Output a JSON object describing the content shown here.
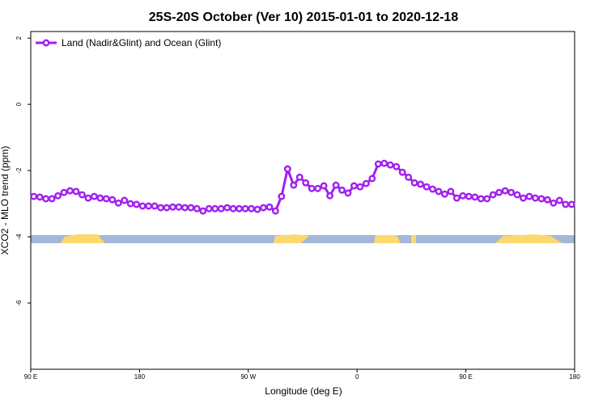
{
  "chart_data": {
    "type": "line",
    "title": "25S-20S October (Ver 10)   2015-01-01 to 2020-12-18",
    "x_label": "Longitude (deg E)",
    "y_label": "XCO2 - MLO trend (ppm)",
    "xlim": [
      90,
      540
    ],
    "ylim": [
      -8,
      2.2
    ],
    "xticks": [
      {
        "value": 90,
        "label": "90 E"
      },
      {
        "value": 180,
        "label": "180"
      },
      {
        "value": 270,
        "label": "90 W"
      },
      {
        "value": 360,
        "label": "0"
      },
      {
        "value": 450,
        "label": "90 E"
      },
      {
        "value": 540,
        "label": "180"
      }
    ],
    "yticks": [
      -6,
      -4,
      -2,
      0,
      2
    ],
    "legend": "top-left",
    "x": [
      92.5,
      97.5,
      102.5,
      107.5,
      112.5,
      117.5,
      122.5,
      127.5,
      132.5,
      137.5,
      142.5,
      147.5,
      152.5,
      157.5,
      162.5,
      167.5,
      172.5,
      177.5,
      182.5,
      187.5,
      192.5,
      197.5,
      202.5,
      207.5,
      212.5,
      217.5,
      222.5,
      227.5,
      232.5,
      237.5,
      242.5,
      247.5,
      252.5,
      257.5,
      262.5,
      267.5,
      272.5,
      277.5,
      282.5,
      287.5,
      292.5,
      297.5,
      302.5,
      307.5,
      312.5,
      317.5,
      322.5,
      327.5,
      332.5,
      337.5,
      342.5,
      347.5,
      352.5,
      357.5,
      362.5,
      367.5,
      372.5,
      377.5,
      382.5,
      387.5,
      392.5,
      397.5,
      402.5,
      407.5,
      412.5,
      417.5,
      422.5,
      427.5,
      432.5,
      437.5,
      442.5,
      447.5,
      452.5,
      457.5,
      462.5,
      467.5,
      472.5,
      477.5,
      482.5,
      487.5,
      492.5,
      497.5,
      502.5,
      507.5,
      512.5,
      517.5,
      522.5,
      527.5,
      532.5,
      537.5
    ],
    "series": [
      {
        "name": "Land (Nadir&Glint) and Ocean (Glint)",
        "color": "#a020f0",
        "values": [
          -2.78,
          -2.8,
          -2.85,
          -2.85,
          -2.76,
          -2.66,
          -2.61,
          -2.63,
          -2.73,
          -2.83,
          -2.78,
          -2.83,
          -2.85,
          -2.88,
          -2.98,
          -2.9,
          -3.0,
          -3.02,
          -3.07,
          -3.07,
          -3.07,
          -3.12,
          -3.12,
          -3.1,
          -3.1,
          -3.12,
          -3.12,
          -3.15,
          -3.22,
          -3.15,
          -3.15,
          -3.15,
          -3.12,
          -3.15,
          -3.15,
          -3.15,
          -3.15,
          -3.17,
          -3.12,
          -3.1,
          -3.22,
          -2.78,
          -1.95,
          -2.44,
          -2.2,
          -2.37,
          -2.54,
          -2.54,
          -2.46,
          -2.76,
          -2.44,
          -2.59,
          -2.68,
          -2.46,
          -2.49,
          -2.39,
          -2.24,
          -1.8,
          -1.78,
          -1.83,
          -1.88,
          -2.05,
          -2.2,
          -2.37,
          -2.41,
          -2.49,
          -2.56,
          -2.63,
          -2.71,
          -2.63,
          -2.83,
          -2.76,
          -2.78,
          -2.8,
          -2.85,
          -2.85,
          -2.73,
          -2.66,
          -2.61,
          -2.66,
          -2.73,
          -2.83,
          -2.78,
          -2.83,
          -2.85,
          -2.88,
          -2.98,
          -2.9,
          -3.02,
          -3.02
        ]
      }
    ]
  }
}
